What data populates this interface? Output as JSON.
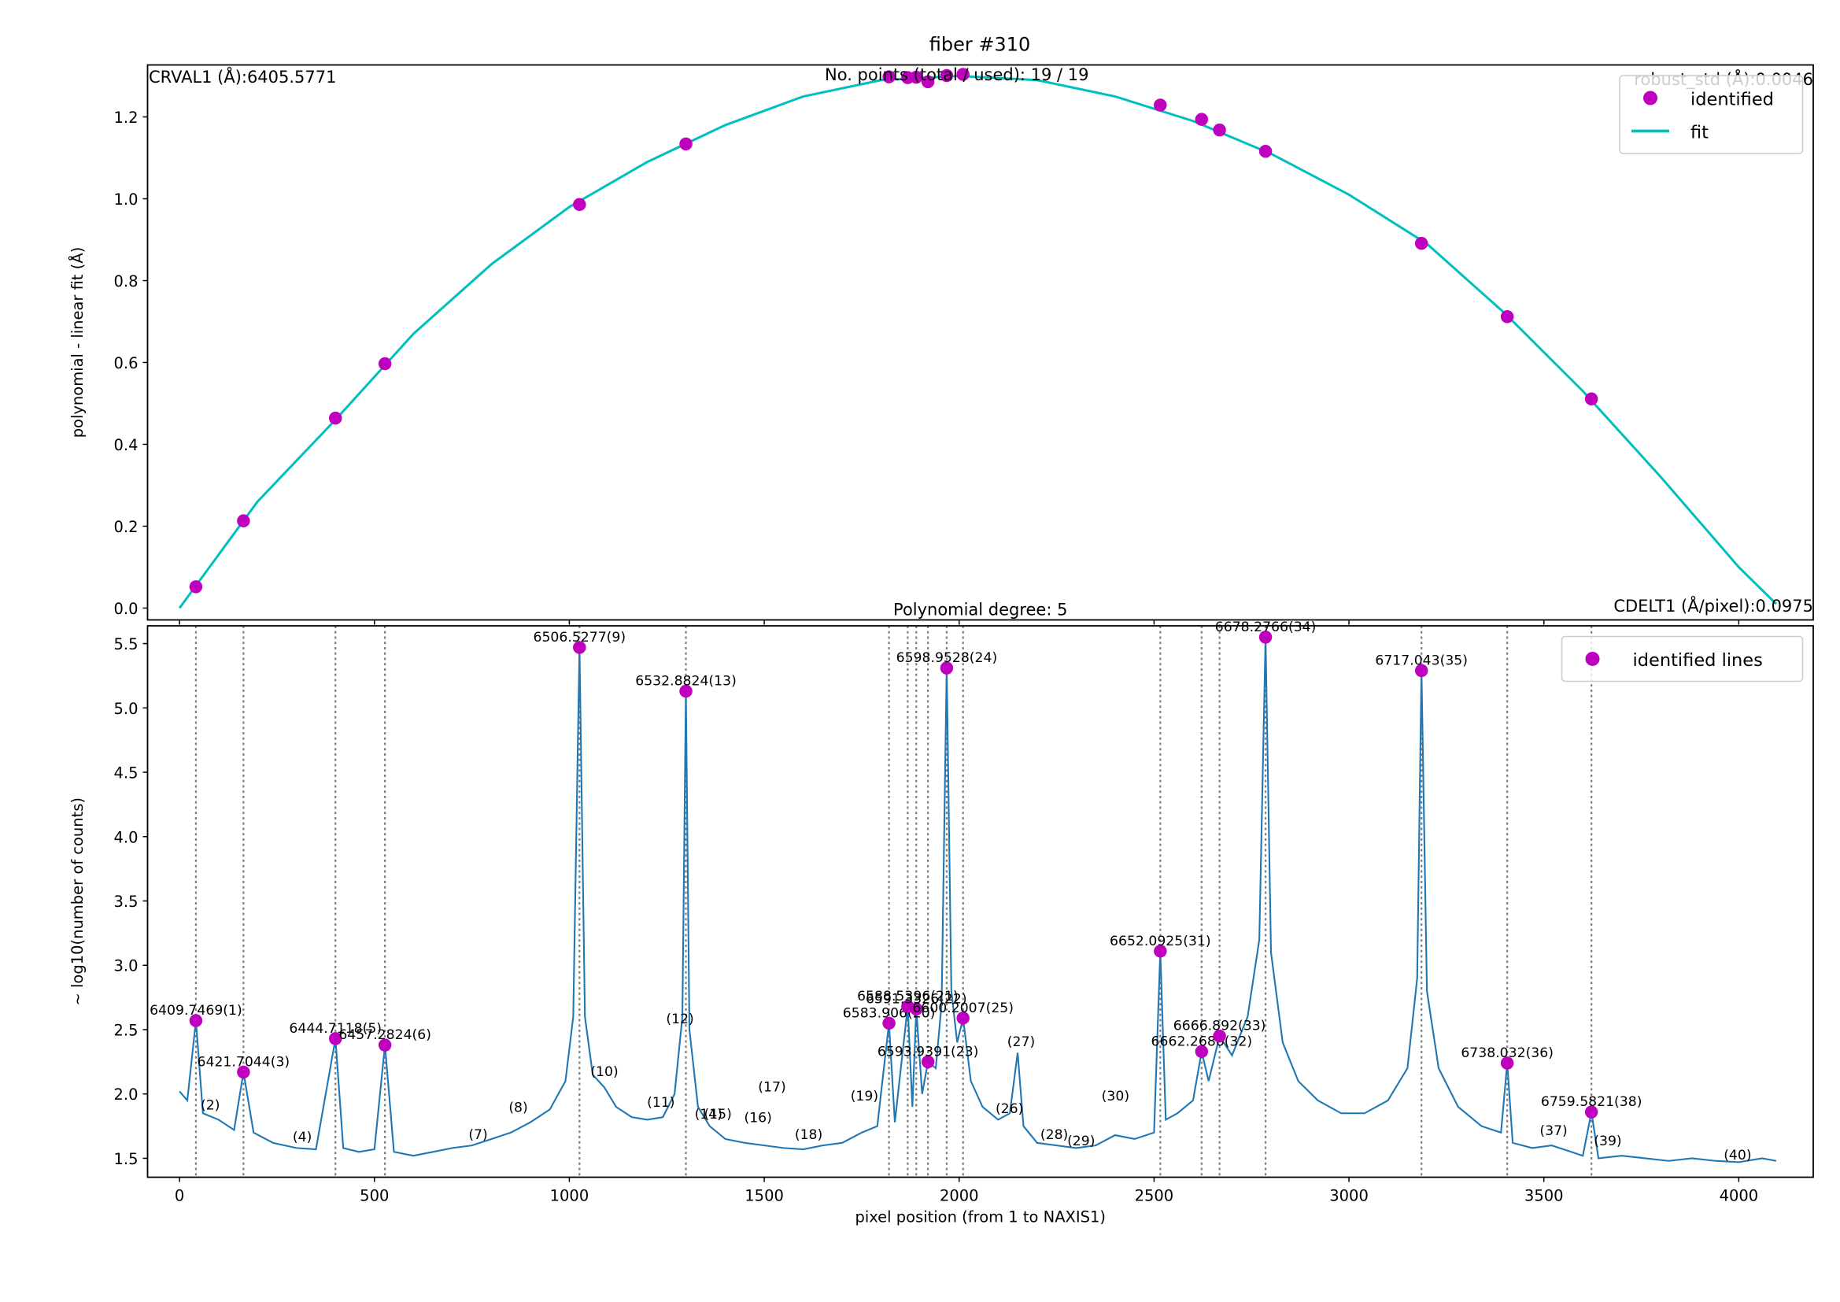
{
  "chart_data": [
    {
      "type": "scatter",
      "title": "fiber #310",
      "ylabel": "polynomial - linear fit (Å)",
      "annotations": [
        {
          "text": "CRVAL1 (Å):6405.5771",
          "loc": "upper left"
        },
        {
          "text": "No. points (total / used): 19 / 19",
          "loc": "upper center"
        },
        {
          "text": "robust_std (Å):0.0046",
          "loc": "upper right"
        },
        {
          "text": "Polynomial degree: 5",
          "loc": "lower center"
        },
        {
          "text": "CDELT1 (Å/pixel):0.0975",
          "loc": "lower right"
        }
      ],
      "xlim": [
        -82,
        4191
      ],
      "xticks": [
        0,
        500,
        1000,
        1500,
        2000,
        2500,
        3000,
        3500,
        4000
      ],
      "ylim": [
        -0.029,
        1.327
      ],
      "yticks": [
        {
          "value": 0,
          "label": "0.0"
        },
        0.2,
        0.4,
        0.6,
        0.8,
        {
          "value": 1,
          "label": "1.0"
        },
        1.2
      ],
      "legend": "upper right",
      "series": [
        {
          "name": "identified",
          "type": "scatter",
          "color": "#bf00bf",
          "x": [
            42,
            164,
            400,
            527,
            1026,
            1299,
            1820,
            1868,
            1890,
            1920,
            1968,
            2010,
            2516,
            2622,
            2668,
            2786,
            3186,
            3406,
            3622
          ],
          "values": [
            0.052,
            0.213,
            0.464,
            0.597,
            0.986,
            1.134,
            1.298,
            1.296,
            1.297,
            1.286,
            1.301,
            1.304,
            1.229,
            1.194,
            1.168,
            1.116,
            0.891,
            0.712,
            0.511
          ]
        },
        {
          "name": "fit",
          "type": "line",
          "color": "#00bfbf",
          "x": [
            0,
            200,
            400,
            600,
            800,
            1000,
            1200,
            1400,
            1600,
            1800,
            2000,
            2200,
            2400,
            2600,
            2800,
            3000,
            3200,
            3400,
            3600,
            3800,
            4000,
            4096
          ],
          "values": [
            0.0,
            0.26,
            0.46,
            0.67,
            0.84,
            0.98,
            1.09,
            1.18,
            1.25,
            1.29,
            1.3,
            1.29,
            1.25,
            1.19,
            1.11,
            1.01,
            0.89,
            0.72,
            0.53,
            0.32,
            0.1,
            0.01
          ]
        }
      ]
    },
    {
      "type": "line",
      "xlabel": "pixel position (from 1 to NAXIS1)",
      "ylabel": "~ log10(number of counts)",
      "xlim": [
        -82,
        4191
      ],
      "xticks": [
        0,
        500,
        1000,
        1500,
        2000,
        2500,
        3000,
        3500,
        4000
      ],
      "ylim": [
        1.353,
        5.638
      ],
      "yticks": [
        1.5,
        {
          "value": 2,
          "label": "2.0"
        },
        2.5,
        {
          "value": 3,
          "label": "3.0"
        },
        3.5,
        {
          "value": 4,
          "label": "4.0"
        },
        4.5,
        {
          "value": 5,
          "label": "5.0"
        },
        5.5
      ],
      "legend": "upper right",
      "series": [
        {
          "type": "line",
          "color": "#1f77b4",
          "x": [
            0,
            20,
            42,
            60,
            100,
            140,
            164,
            190,
            240,
            300,
            350,
            400,
            420,
            460,
            500,
            527,
            550,
            600,
            650,
            700,
            750,
            800,
            850,
            900,
            950,
            990,
            1010,
            1026,
            1040,
            1060,
            1090,
            1120,
            1160,
            1200,
            1240,
            1270,
            1290,
            1299,
            1308,
            1330,
            1360,
            1400,
            1450,
            1500,
            1550,
            1600,
            1650,
            1700,
            1750,
            1790,
            1820,
            1835,
            1868,
            1880,
            1890,
            1905,
            1920,
            1940,
            1955,
            1968,
            1980,
            1995,
            2010,
            2030,
            2060,
            2100,
            2130,
            2150,
            2165,
            2200,
            2250,
            2300,
            2350,
            2400,
            2450,
            2500,
            2516,
            2530,
            2560,
            2600,
            2622,
            2640,
            2668,
            2700,
            2740,
            2770,
            2786,
            2800,
            2830,
            2870,
            2920,
            2980,
            3040,
            3100,
            3150,
            3175,
            3186,
            3200,
            3230,
            3280,
            3340,
            3390,
            3406,
            3420,
            3470,
            3520,
            3570,
            3600,
            3622,
            3640,
            3700,
            3760,
            3820,
            3880,
            3940,
            4000,
            4060,
            4096
          ],
          "values": [
            2.02,
            1.95,
            2.57,
            1.85,
            1.8,
            1.72,
            2.17,
            1.7,
            1.62,
            1.58,
            1.57,
            2.43,
            1.58,
            1.55,
            1.57,
            2.38,
            1.55,
            1.52,
            1.55,
            1.58,
            1.6,
            1.65,
            1.7,
            1.78,
            1.88,
            2.1,
            2.6,
            5.47,
            2.6,
            2.15,
            2.05,
            1.9,
            1.82,
            1.8,
            1.82,
            2.0,
            2.6,
            5.13,
            2.5,
            1.9,
            1.75,
            1.65,
            1.62,
            1.6,
            1.58,
            1.57,
            1.6,
            1.62,
            1.7,
            1.75,
            2.55,
            1.78,
            2.68,
            1.9,
            2.66,
            2.0,
            2.25,
            2.2,
            2.7,
            5.31,
            2.8,
            2.4,
            2.59,
            2.1,
            1.9,
            1.8,
            1.85,
            2.32,
            1.75,
            1.62,
            1.6,
            1.58,
            1.6,
            1.68,
            1.65,
            1.7,
            3.11,
            1.8,
            1.85,
            1.95,
            2.33,
            2.1,
            2.45,
            2.3,
            2.6,
            3.2,
            5.55,
            3.1,
            2.4,
            2.1,
            1.95,
            1.85,
            1.85,
            1.95,
            2.2,
            2.9,
            5.29,
            2.8,
            2.2,
            1.9,
            1.75,
            1.7,
            2.24,
            1.62,
            1.58,
            1.6,
            1.55,
            1.52,
            1.86,
            1.5,
            1.52,
            1.5,
            1.48,
            1.5,
            1.48,
            1.47,
            1.5,
            1.48
          ]
        },
        {
          "name": "identified lines",
          "type": "scatter",
          "color": "#bf00bf",
          "x": [
            42,
            164,
            400,
            527,
            1026,
            1299,
            1820,
            1868,
            1890,
            1920,
            1968,
            2010,
            2516,
            2622,
            2668,
            2786,
            3186,
            3406,
            3622
          ],
          "values": [
            2.57,
            2.17,
            2.43,
            2.38,
            5.47,
            5.13,
            2.55,
            2.68,
            2.66,
            2.25,
            5.31,
            2.59,
            3.11,
            2.33,
            2.45,
            5.55,
            5.29,
            2.24,
            1.86
          ],
          "labels": [
            "6409.7469(1)",
            "6421.7044(3)",
            "6444.7118(5)",
            "6457.2824(6)",
            "6506.5277(9)",
            "6532.8824(13)",
            "6583.906(20)",
            "6588.5396(21)",
            "6591.3326(22)",
            "6593.9391(23)",
            "6598.9528(24)",
            "6600.2007(25)",
            "6652.0925(31)",
            "6662.2686(32)",
            "6666.892(33)",
            "6678.2766(34)",
            "6717.043(35)",
            "6738.032(36)",
            "6759.5821(38)"
          ]
        }
      ],
      "unidentified": {
        "labels": [
          "(2)",
          "(4)",
          "(7)",
          "(8)",
          "(10)",
          "(11)",
          "(12)",
          "(14)",
          "(15)",
          "(16)",
          "(17)",
          "(18)",
          "(19)",
          "(26)",
          "(27)",
          "(28)",
          "(29)",
          "(30)",
          "(37)",
          "(39)",
          "(40)"
        ],
        "x": [
          79,
          315,
          766,
          869,
          1090,
          1235,
          1284,
          1357,
          1381,
          1484,
          1520,
          1614,
          1757,
          2129,
          2159,
          2244,
          2313,
          2401,
          3525,
          3664,
          3997
        ],
        "y": [
          1.88,
          1.63,
          1.65,
          1.86,
          2.14,
          1.9,
          2.55,
          1.81,
          1.81,
          1.78,
          2.02,
          1.65,
          1.95,
          1.85,
          2.37,
          1.65,
          1.6,
          1.95,
          1.68,
          1.6,
          1.49
        ]
      }
    }
  ]
}
